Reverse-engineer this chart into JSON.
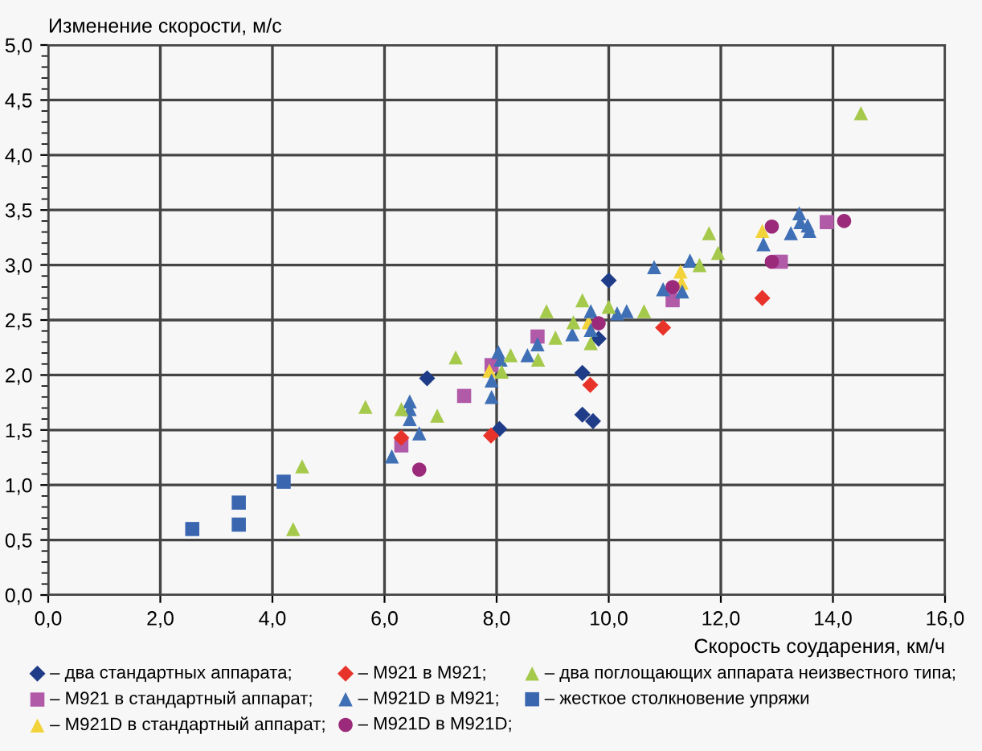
{
  "chart_data": {
    "type": "scatter",
    "xlabel": "Скорость соударения, км/ч",
    "ylabel": "Изменение скорости, м/с",
    "xlim": [
      0,
      16
    ],
    "ylim": [
      0,
      5
    ],
    "xticks": [
      {
        "value": 0,
        "label": "0,0"
      },
      {
        "value": 2,
        "label": "2,0"
      },
      {
        "value": 4,
        "label": "4,0"
      },
      {
        "value": 6,
        "label": "6,0"
      },
      {
        "value": 8,
        "label": "8,0"
      },
      {
        "value": 10,
        "label": "10,0"
      },
      {
        "value": 12,
        "label": "12,0"
      },
      {
        "value": 14,
        "label": "14,0"
      },
      {
        "value": 16,
        "label": "16,0"
      }
    ],
    "yticks": [
      {
        "value": 0,
        "label": "0,0"
      },
      {
        "value": 0.5,
        "label": "0,5"
      },
      {
        "value": 1,
        "label": "1,0"
      },
      {
        "value": 1.5,
        "label": "1,5"
      },
      {
        "value": 2,
        "label": "2,0"
      },
      {
        "value": 2.5,
        "label": "2,5"
      },
      {
        "value": 3,
        "label": "3,0"
      },
      {
        "value": 3.5,
        "label": "3,5"
      },
      {
        "value": 4,
        "label": "4,0"
      },
      {
        "value": 4.5,
        "label": "4,5"
      },
      {
        "value": 5,
        "label": "5,0"
      }
    ],
    "grid": true,
    "legend": "bottom",
    "series": [
      {
        "name": "– два стандартных аппарата;",
        "color": "#1f3c88",
        "marker": "diamond",
        "x": [
          6.76,
          8.05,
          9.53,
          9.53,
          9.72,
          9.82,
          10.0
        ],
        "values": [
          1.97,
          1.51,
          2.02,
          1.64,
          1.58,
          2.33,
          2.86
        ]
      },
      {
        "name": "– M921 в стандартный аппарат;",
        "color": "#b05aa8",
        "marker": "square",
        "x": [
          6.3,
          7.42,
          7.91,
          8.73,
          11.14,
          13.07,
          13.89
        ],
        "values": [
          1.36,
          1.81,
          2.09,
          2.35,
          2.68,
          3.03,
          3.39
        ]
      },
      {
        "name": "– M921D в стандартный аппарат;",
        "color": "#f2d33a",
        "marker": "triangle",
        "x": [
          7.87,
          9.64,
          11.28,
          11.3,
          12.74
        ],
        "values": [
          2.04,
          2.48,
          2.94,
          2.84,
          3.31
        ]
      },
      {
        "name": "– M921 в M921;",
        "color": "#e8332a",
        "marker": "diamond",
        "x": [
          6.3,
          7.9,
          9.67,
          10.97,
          12.74
        ],
        "values": [
          1.43,
          1.45,
          1.91,
          2.43,
          2.7
        ]
      },
      {
        "name": "– M921D в M921;",
        "color": "#3f6fb5",
        "marker": "triangle",
        "x": [
          6.13,
          6.62,
          6.45,
          6.45,
          6.45,
          7.91,
          7.91,
          8.03,
          8.07,
          8.55,
          8.73,
          9.35,
          9.68,
          9.68,
          10.15,
          10.32,
          10.81,
          10.97,
          11.31,
          11.45,
          12.76,
          13.25,
          13.4,
          13.42,
          13.55,
          13.58
        ],
        "values": [
          1.26,
          1.47,
          1.76,
          1.69,
          1.6,
          1.8,
          1.95,
          2.21,
          2.14,
          2.18,
          2.28,
          2.37,
          2.58,
          2.41,
          2.56,
          2.58,
          2.98,
          2.78,
          2.76,
          3.04,
          3.19,
          3.29,
          3.47,
          3.39,
          3.36,
          3.31
        ]
      },
      {
        "name": "– M921D в M921D;",
        "color": "#9b2a7a",
        "marker": "circle",
        "x": [
          6.62,
          9.82,
          11.14,
          12.91,
          12.91,
          14.2
        ],
        "values": [
          1.14,
          2.47,
          2.8,
          3.35,
          3.03,
          3.4
        ]
      },
      {
        "name": "– два поглощающих аппарата неизвестного типа;",
        "color": "#a5c94a",
        "marker": "triangle",
        "x": [
          4.37,
          4.53,
          5.66,
          6.3,
          6.94,
          7.27,
          8.09,
          8.25,
          8.74,
          8.89,
          9.05,
          9.37,
          9.53,
          9.68,
          10.0,
          10.63,
          11.62,
          11.79,
          11.95,
          14.5
        ],
        "values": [
          0.6,
          1.17,
          1.71,
          1.69,
          1.63,
          2.16,
          2.03,
          2.18,
          2.14,
          2.58,
          2.34,
          2.48,
          2.68,
          2.29,
          2.62,
          2.58,
          3.0,
          3.29,
          3.11,
          4.38
        ]
      },
      {
        "name": "– жесткое столкновение упряжи",
        "color": "#3a66b0",
        "marker": "square",
        "x": [
          2.57,
          3.4,
          3.4,
          4.2
        ],
        "values": [
          0.6,
          0.84,
          0.64,
          1.03
        ]
      }
    ]
  }
}
